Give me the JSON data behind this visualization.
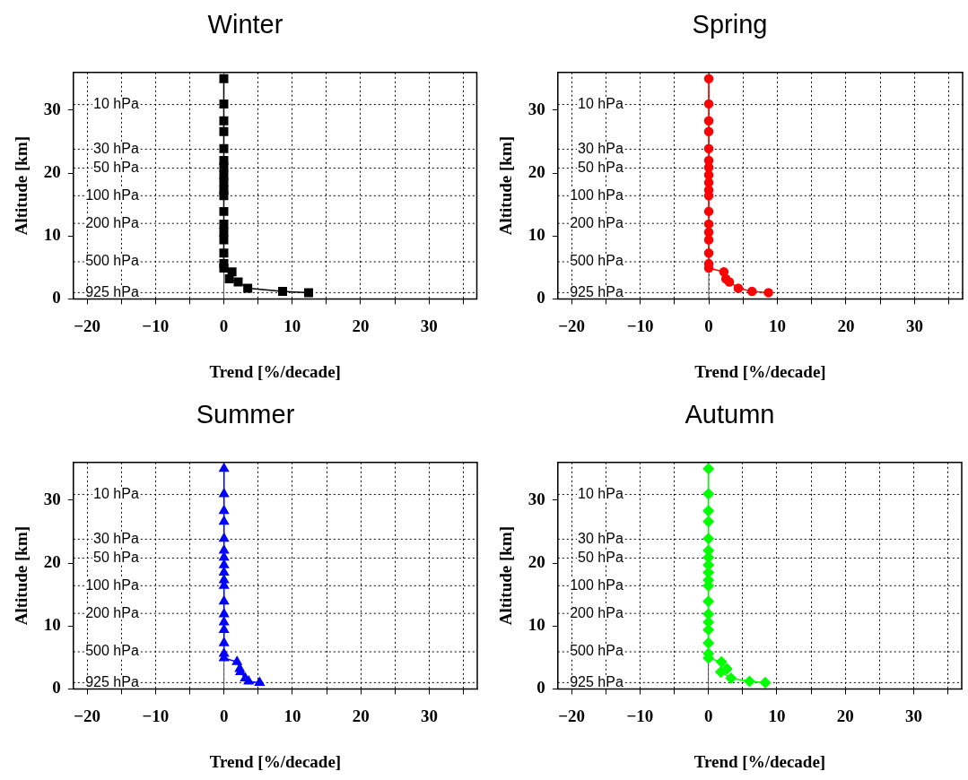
{
  "chart_data": [
    {
      "type": "line",
      "title": "Winter",
      "xlabel": "Trend [%/decade]",
      "ylabel": "Altitude [km]",
      "marker": "square",
      "line_style": "solid",
      "legend": false,
      "grid": "x",
      "series": [
        {
          "color": "#000000",
          "x": [
            0,
            0,
            0,
            0,
            0,
            0,
            0,
            0,
            0,
            0,
            0,
            0,
            0,
            0,
            0,
            0,
            0,
            0,
            1.2,
            0.8,
            2.1,
            3.5,
            8.6,
            12.4
          ],
          "values": [
            35,
            31,
            28.3,
            26.6,
            23.9,
            22,
            20.9,
            19.7,
            18.5,
            17.3,
            16.4,
            13.9,
            11.9,
            10.6,
            9.4,
            7.3,
            5.6,
            4.9,
            4.3,
            3.2,
            2.7,
            1.7,
            1.2,
            1.0
          ]
        }
      ],
      "xlim": [
        -22,
        37
      ],
      "xticks": [
        -20,
        {
          "value": -15,
          "label": null
        },
        -10,
        {
          "value": -5,
          "label": null
        },
        0,
        {
          "value": 5,
          "label": null
        },
        10,
        {
          "value": 15,
          "label": null
        },
        20,
        {
          "value": 25,
          "label": null
        },
        30,
        {
          "value": 35,
          "label": null
        }
      ],
      "ylim": [
        0,
        36
      ],
      "yticks": [
        0,
        10,
        20,
        30
      ],
      "ref_lines": [
        {
          "axis": "x",
          "value": 0,
          "color": "#555555",
          "line_style": "solid"
        },
        {
          "axis": "y",
          "value": 30.9,
          "label": "10 hPa",
          "line_style": "dotted"
        },
        {
          "axis": "y",
          "value": 23.8,
          "label": "30 hPa",
          "line_style": "dotted"
        },
        {
          "axis": "y",
          "value": 20.8,
          "label": "50 hPa",
          "line_style": "dotted"
        },
        {
          "axis": "y",
          "value": 16.4,
          "label": "100 hPa",
          "line_style": "dotted"
        },
        {
          "axis": "y",
          "value": 12,
          "label": "200 hPa",
          "line_style": "dotted"
        },
        {
          "axis": "y",
          "value": 5.9,
          "label": "500 hPa",
          "line_style": "dotted"
        },
        {
          "axis": "y",
          "value": 1,
          "label": "925 hPa",
          "line_style": "dotted"
        }
      ]
    },
    {
      "type": "line",
      "title": "Spring",
      "xlabel": "Trend [%/decade]",
      "ylabel": "Altitude [km]",
      "marker": "circle",
      "line_style": "solid",
      "legend": false,
      "grid": "x",
      "series": [
        {
          "color": "#ff0000",
          "x": [
            0,
            0,
            0,
            0,
            0,
            0,
            0,
            0,
            0,
            0,
            0,
            0,
            0,
            0,
            0,
            0,
            0,
            0,
            2.2,
            2.5,
            3.0,
            4.3,
            6.3,
            8.7
          ],
          "values": [
            35,
            31,
            28.3,
            26.6,
            23.9,
            22,
            20.9,
            19.7,
            18.5,
            17.3,
            16.4,
            13.9,
            11.9,
            10.6,
            9.4,
            7.3,
            5.6,
            4.9,
            4.3,
            3.2,
            2.7,
            1.7,
            1.2,
            1.0
          ]
        }
      ],
      "xlim": [
        -22,
        37
      ],
      "xticks": [
        -20,
        {
          "value": -15,
          "label": null
        },
        -10,
        {
          "value": -5,
          "label": null
        },
        0,
        {
          "value": 5,
          "label": null
        },
        10,
        {
          "value": 15,
          "label": null
        },
        20,
        {
          "value": 25,
          "label": null
        },
        30,
        {
          "value": 35,
          "label": null
        }
      ],
      "ylim": [
        0,
        36
      ],
      "yticks": [
        0,
        10,
        20,
        30
      ],
      "ref_lines": [
        {
          "axis": "x",
          "value": 0,
          "color": "#555555",
          "line_style": "solid"
        },
        {
          "axis": "y",
          "value": 30.9,
          "label": "10 hPa",
          "line_style": "dotted"
        },
        {
          "axis": "y",
          "value": 23.8,
          "label": "30 hPa",
          "line_style": "dotted"
        },
        {
          "axis": "y",
          "value": 20.8,
          "label": "50 hPa",
          "line_style": "dotted"
        },
        {
          "axis": "y",
          "value": 16.4,
          "label": "100 hPa",
          "line_style": "dotted"
        },
        {
          "axis": "y",
          "value": 12,
          "label": "200 hPa",
          "line_style": "dotted"
        },
        {
          "axis": "y",
          "value": 5.9,
          "label": "500 hPa",
          "line_style": "dotted"
        },
        {
          "axis": "y",
          "value": 1,
          "label": "925 hPa",
          "line_style": "dotted"
        }
      ]
    },
    {
      "type": "line",
      "title": "Summer",
      "xlabel": "Trend [%/decade]",
      "ylabel": "Altitude [km]",
      "marker": "triangle",
      "line_style": "solid",
      "legend": false,
      "grid": "x",
      "series": [
        {
          "color": "#0000ff",
          "x": [
            0,
            0,
            0,
            0,
            0,
            0,
            0,
            0,
            0,
            0,
            0,
            0,
            0,
            0,
            0,
            0,
            0,
            0,
            1.9,
            2.3,
            2.4,
            3.1,
            3.6,
            5.2
          ],
          "values": [
            35,
            31,
            28.3,
            26.6,
            23.9,
            22,
            20.9,
            19.7,
            18.5,
            17.3,
            16.4,
            13.9,
            11.9,
            10.6,
            9.4,
            7.3,
            5.6,
            4.9,
            4.3,
            3.2,
            2.7,
            1.7,
            1.2,
            1.0
          ]
        }
      ],
      "xlim": [
        -22,
        37
      ],
      "xticks": [
        -20,
        {
          "value": -15,
          "label": null
        },
        -10,
        {
          "value": -5,
          "label": null
        },
        0,
        {
          "value": 5,
          "label": null
        },
        10,
        {
          "value": 15,
          "label": null
        },
        20,
        {
          "value": 25,
          "label": null
        },
        30,
        {
          "value": 35,
          "label": null
        }
      ],
      "ylim": [
        0,
        36
      ],
      "yticks": [
        0,
        10,
        20,
        30
      ],
      "ref_lines": [
        {
          "axis": "x",
          "value": 0,
          "color": "#555555",
          "line_style": "solid"
        },
        {
          "axis": "y",
          "value": 30.9,
          "label": "10 hPa",
          "line_style": "dotted"
        },
        {
          "axis": "y",
          "value": 23.8,
          "label": "30 hPa",
          "line_style": "dotted"
        },
        {
          "axis": "y",
          "value": 20.8,
          "label": "50 hPa",
          "line_style": "dotted"
        },
        {
          "axis": "y",
          "value": 16.4,
          "label": "100 hPa",
          "line_style": "dotted"
        },
        {
          "axis": "y",
          "value": 12,
          "label": "200 hPa",
          "line_style": "dotted"
        },
        {
          "axis": "y",
          "value": 5.9,
          "label": "500 hPa",
          "line_style": "dotted"
        },
        {
          "axis": "y",
          "value": 1,
          "label": "925 hPa",
          "line_style": "dotted"
        }
      ]
    },
    {
      "type": "line",
      "title": "Autumn",
      "xlabel": "Trend [%/decade]",
      "ylabel": "Altitude [km]",
      "marker": "diamond",
      "line_style": "solid",
      "legend": false,
      "grid": "x",
      "series": [
        {
          "color": "#00ff00",
          "x": [
            0,
            0,
            0,
            0,
            0,
            0,
            0,
            0,
            0,
            0,
            0,
            0,
            0,
            0,
            0,
            0,
            0,
            0,
            1.9,
            2.7,
            1.8,
            3.3,
            6.0,
            8.3
          ],
          "values": [
            35,
            31,
            28.3,
            26.6,
            23.9,
            22,
            20.9,
            19.7,
            18.5,
            17.3,
            16.4,
            13.9,
            11.9,
            10.6,
            9.4,
            7.3,
            5.6,
            4.9,
            4.3,
            3.2,
            2.7,
            1.7,
            1.2,
            1.0
          ]
        }
      ],
      "xlim": [
        -22,
        37
      ],
      "xticks": [
        -20,
        {
          "value": -15,
          "label": null
        },
        -10,
        {
          "value": -5,
          "label": null
        },
        0,
        {
          "value": 5,
          "label": null
        },
        10,
        {
          "value": 15,
          "label": null
        },
        20,
        {
          "value": 25,
          "label": null
        },
        30,
        {
          "value": 35,
          "label": null
        }
      ],
      "ylim": [
        0,
        36
      ],
      "yticks": [
        0,
        10,
        20,
        30
      ],
      "ref_lines": [
        {
          "axis": "x",
          "value": 0,
          "color": "#555555",
          "line_style": "solid"
        },
        {
          "axis": "y",
          "value": 30.9,
          "label": "10 hPa",
          "line_style": "dotted"
        },
        {
          "axis": "y",
          "value": 23.8,
          "label": "30 hPa",
          "line_style": "dotted"
        },
        {
          "axis": "y",
          "value": 20.8,
          "label": "50 hPa",
          "line_style": "dotted"
        },
        {
          "axis": "y",
          "value": 16.4,
          "label": "100 hPa",
          "line_style": "dotted"
        },
        {
          "axis": "y",
          "value": 12,
          "label": "200 hPa",
          "line_style": "dotted"
        },
        {
          "axis": "y",
          "value": 5.9,
          "label": "500 hPa",
          "line_style": "dotted"
        },
        {
          "axis": "y",
          "value": 1,
          "label": "925 hPa",
          "line_style": "dotted"
        }
      ]
    }
  ]
}
